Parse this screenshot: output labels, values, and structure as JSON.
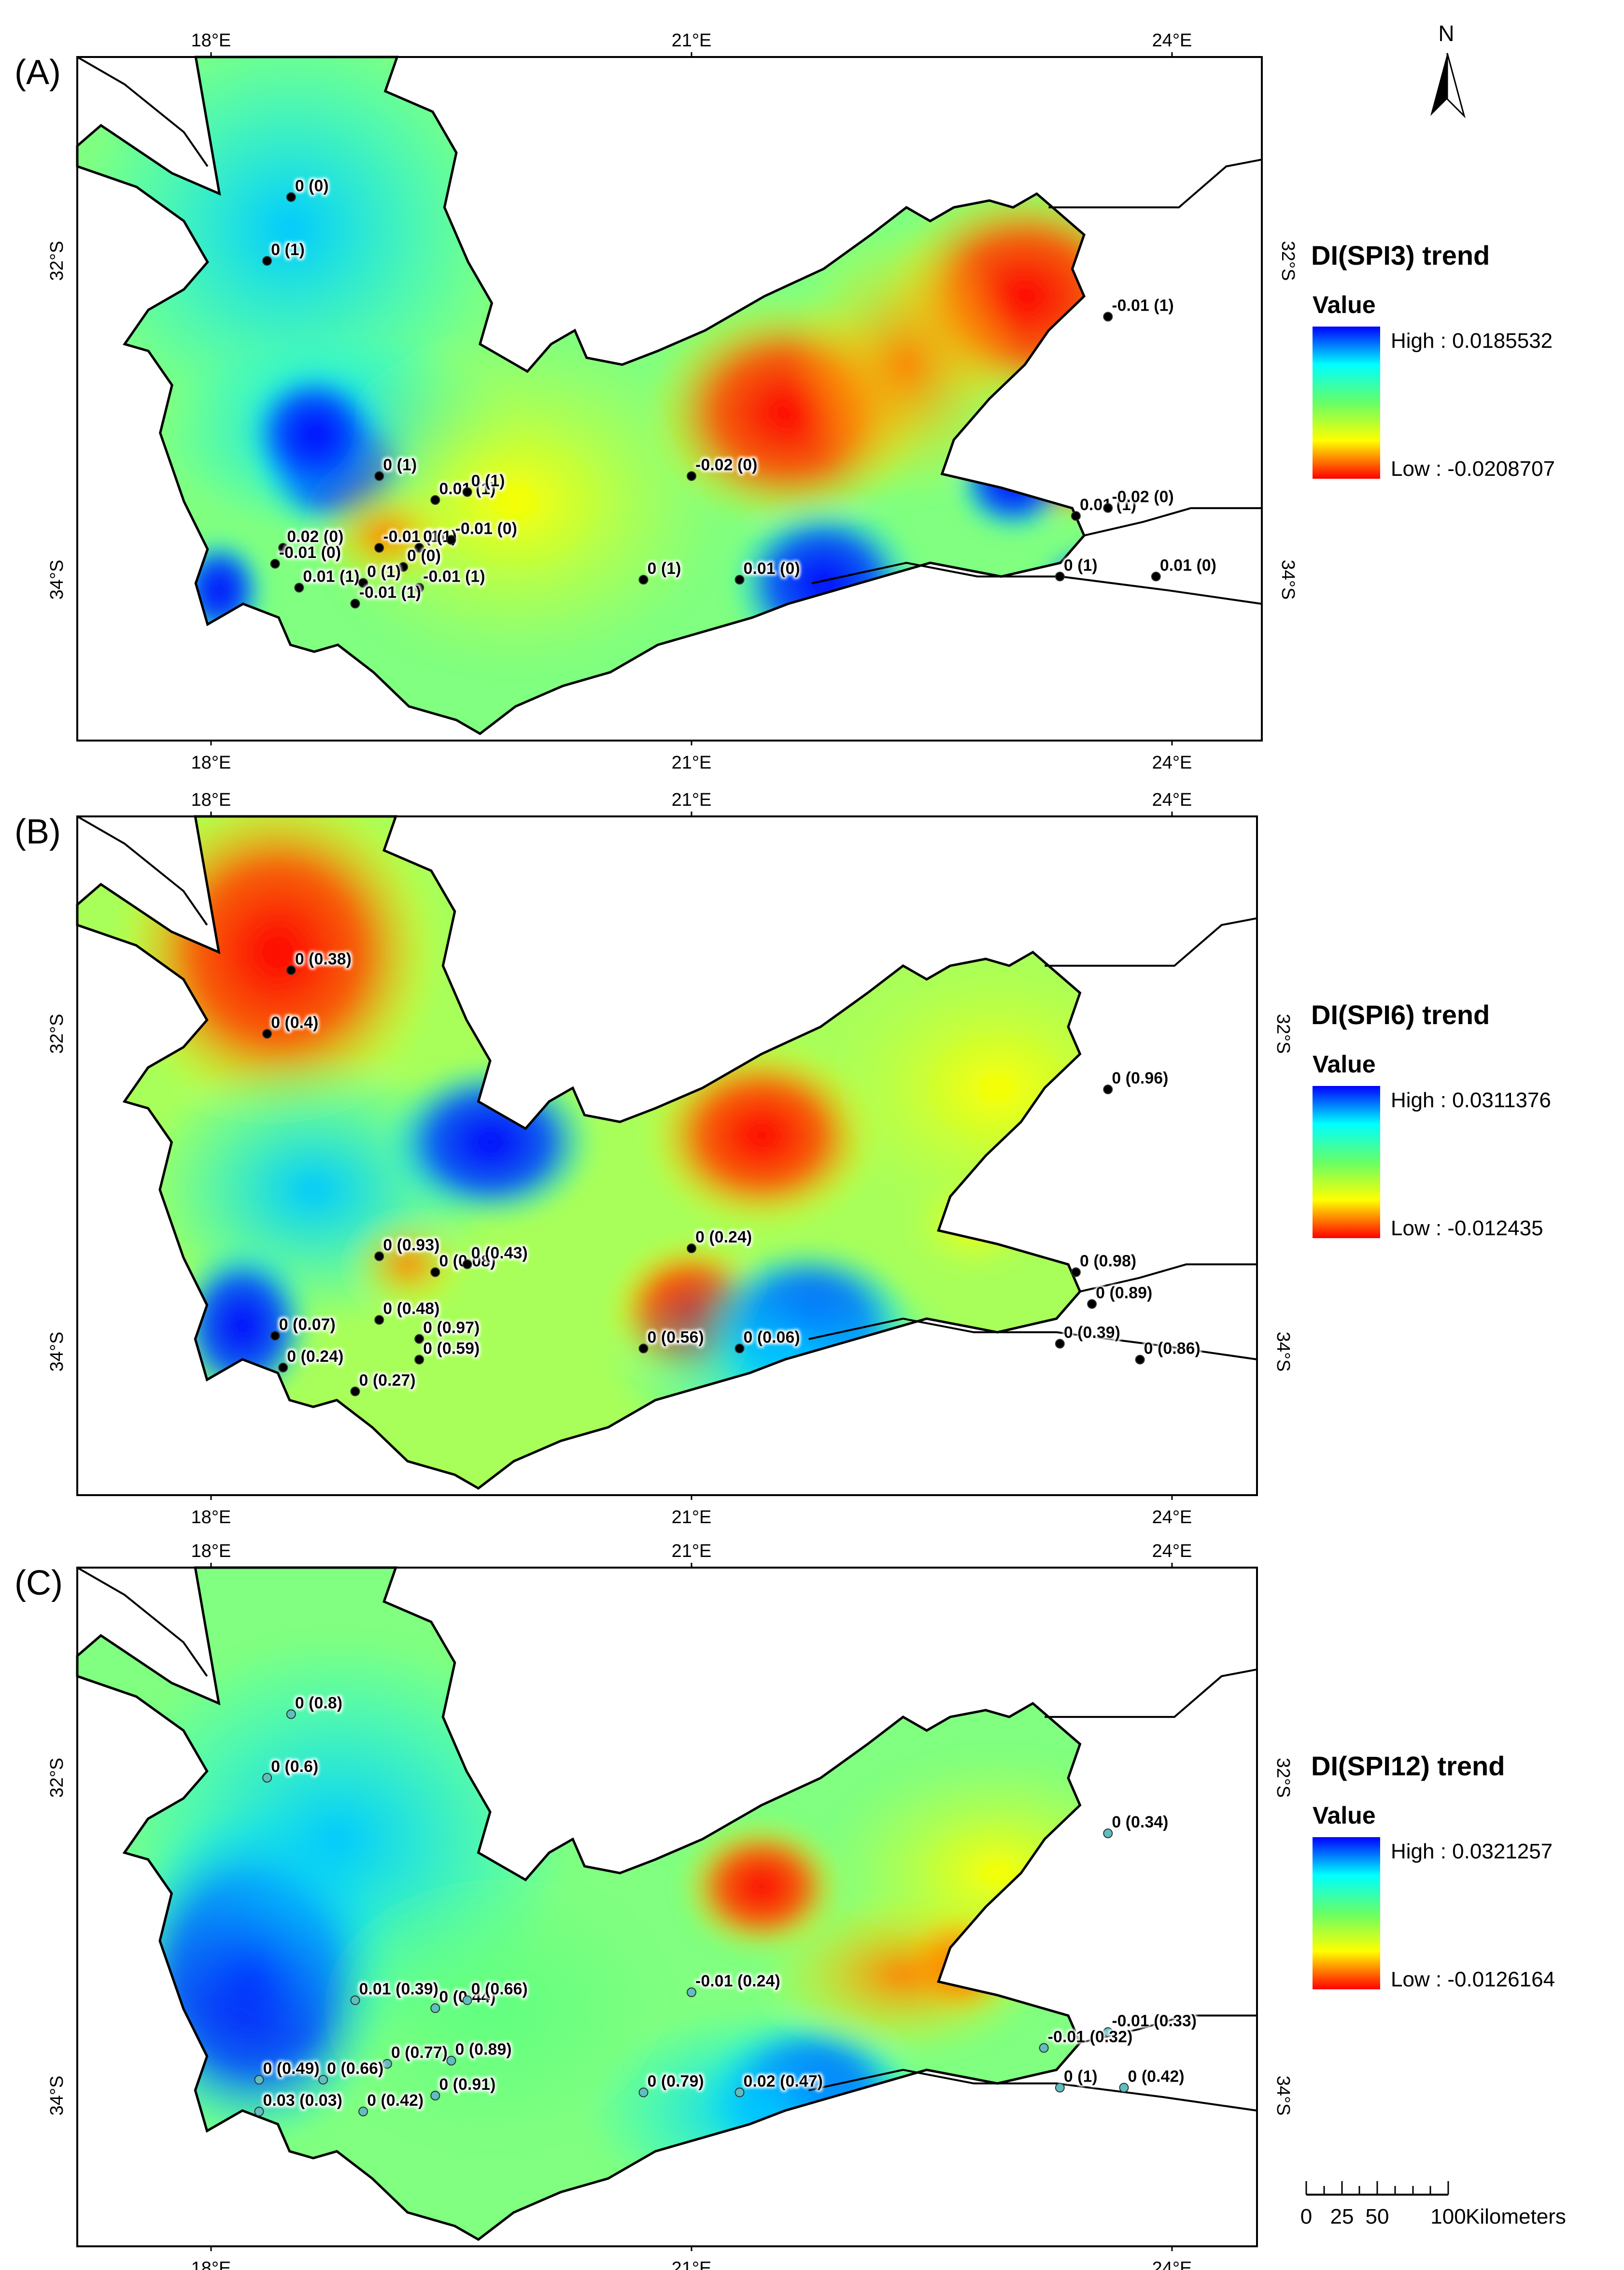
{
  "north_arrow": {
    "label": "N"
  },
  "axis_labels": {
    "x": [
      "18°E",
      "21°E",
      "24°E"
    ],
    "y": [
      "32°S",
      "34°S"
    ]
  },
  "panels": [
    {
      "letter": "(A)",
      "legend": {
        "title": "DI(SPI3) trend",
        "subtitle": "Value",
        "high": "High : 0.0185532",
        "low": "Low : -0.0208707"
      },
      "stations": [
        {
          "label": "0 (0)",
          "lon": 18.5,
          "lat": 31.6,
          "color": "#000000"
        },
        {
          "label": "0 (1)",
          "lon": 18.35,
          "lat": 32.0,
          "color": "#000000"
        },
        {
          "label": "-0.01 (1)",
          "lon": 23.6,
          "lat": 32.35,
          "color": "#000000"
        },
        {
          "label": "-0.02 (0)",
          "lon": 21.0,
          "lat": 33.35,
          "color": "#000000"
        },
        {
          "label": "0 (1)",
          "lon": 19.05,
          "lat": 33.35,
          "color": "#000000"
        },
        {
          "label": "0.01 (1)",
          "lon": 19.4,
          "lat": 33.5,
          "color": "#000000"
        },
        {
          "label": "0 (1)",
          "lon": 19.6,
          "lat": 33.45,
          "color": "#000000"
        },
        {
          "label": "0.01 (1)",
          "lon": 23.4,
          "lat": 33.6,
          "color": "#000000"
        },
        {
          "label": "-0.02 (0)",
          "lon": 23.6,
          "lat": 33.55,
          "color": "#000000"
        },
        {
          "label": "-0.01 (1)",
          "lon": 19.05,
          "lat": 33.8,
          "color": "#000000"
        },
        {
          "label": "0 (1)",
          "lon": 19.3,
          "lat": 33.8,
          "color": "#000000"
        },
        {
          "label": "-0.01 (0)",
          "lon": 19.5,
          "lat": 33.75,
          "color": "#000000"
        },
        {
          "label": "0.02 (0)",
          "lon": 18.45,
          "lat": 33.8,
          "color": "#000000"
        },
        {
          "label": "-0.01 (0)",
          "lon": 18.4,
          "lat": 33.9,
          "color": "#000000"
        },
        {
          "label": "0 (0)",
          "lon": 19.2,
          "lat": 33.92,
          "color": "#000000"
        },
        {
          "label": "0.01 (1)",
          "lon": 18.55,
          "lat": 34.05,
          "color": "#000000"
        },
        {
          "label": "0 (1)",
          "lon": 18.95,
          "lat": 34.02,
          "color": "#000000"
        },
        {
          "label": "-0.01 (1)",
          "lon": 19.3,
          "lat": 34.05,
          "color": "#000000"
        },
        {
          "label": "-0.01 (1)",
          "lon": 18.9,
          "lat": 34.15,
          "color": "#000000"
        },
        {
          "label": "0 (1)",
          "lon": 20.7,
          "lat": 34.0,
          "color": "#000000"
        },
        {
          "label": "0.01 (0)",
          "lon": 21.3,
          "lat": 34.0,
          "color": "#000000"
        },
        {
          "label": "0 (1)",
          "lon": 23.3,
          "lat": 33.98,
          "color": "#000000"
        },
        {
          "label": "0.01 (0)",
          "lon": 23.9,
          "lat": 33.98,
          "color": "#000000"
        }
      ]
    },
    {
      "letter": "(B)",
      "legend": {
        "title": "DI(SPI6) trend",
        "subtitle": "Value",
        "high": "High : 0.0311376",
        "low": "Low : -0.012435"
      },
      "stations": [
        {
          "label": "0 (0.38)",
          "lon": 18.5,
          "lat": 31.6,
          "color": "#000000"
        },
        {
          "label": "0 (0.4)",
          "lon": 18.35,
          "lat": 32.0,
          "color": "#000000"
        },
        {
          "label": "0 (0.96)",
          "lon": 23.6,
          "lat": 32.35,
          "color": "#000000"
        },
        {
          "label": "0 (0.24)",
          "lon": 21.0,
          "lat": 33.35,
          "color": "#000000"
        },
        {
          "label": "0 (0.93)",
          "lon": 19.05,
          "lat": 33.4,
          "color": "#000000"
        },
        {
          "label": "0 (0.08)",
          "lon": 19.4,
          "lat": 33.5,
          "color": "#000000"
        },
        {
          "label": "0 (0.43)",
          "lon": 19.6,
          "lat": 33.45,
          "color": "#000000"
        },
        {
          "label": "0 (0.98)",
          "lon": 23.4,
          "lat": 33.5,
          "color": "#000000"
        },
        {
          "label": "0 (0.89)",
          "lon": 23.5,
          "lat": 33.7,
          "color": "#000000"
        },
        {
          "label": "0 (0.48)",
          "lon": 19.05,
          "lat": 33.8,
          "color": "#000000"
        },
        {
          "label": "0 (0.07)",
          "lon": 18.4,
          "lat": 33.9,
          "color": "#000000"
        },
        {
          "label": "0 (0.97)",
          "lon": 19.3,
          "lat": 33.92,
          "color": "#000000"
        },
        {
          "label": "0 (0.24)",
          "lon": 18.45,
          "lat": 34.1,
          "color": "#000000"
        },
        {
          "label": "0 (0.59)",
          "lon": 19.3,
          "lat": 34.05,
          "color": "#000000"
        },
        {
          "label": "0 (0.27)",
          "lon": 18.9,
          "lat": 34.25,
          "color": "#000000"
        },
        {
          "label": "0 (0.56)",
          "lon": 20.7,
          "lat": 33.98,
          "color": "#000000"
        },
        {
          "label": "0 (0.06)",
          "lon": 21.3,
          "lat": 33.98,
          "color": "#000000"
        },
        {
          "label": "0 (0.39)",
          "lon": 23.3,
          "lat": 33.95,
          "color": "#000000"
        },
        {
          "label": "0 (0.86)",
          "lon": 23.8,
          "lat": 34.05,
          "color": "#000000"
        }
      ]
    },
    {
      "letter": "(C)",
      "legend": {
        "title": "DI(SPI12) trend",
        "subtitle": "Value",
        "high": "High : 0.0321257",
        "low": "Low : -0.0126164"
      },
      "stations": [
        {
          "label": "0 (0.8)",
          "lon": 18.5,
          "lat": 31.6,
          "color": "#5fbfbf"
        },
        {
          "label": "0 (0.6)",
          "lon": 18.35,
          "lat": 32.0,
          "color": "#5fbfbf"
        },
        {
          "label": "0 (0.34)",
          "lon": 23.6,
          "lat": 32.35,
          "color": "#5fbfbf"
        },
        {
          "label": "-0.01 (0.24)",
          "lon": 21.0,
          "lat": 33.35,
          "color": "#5fbfbf"
        },
        {
          "label": "0.01 (0.39)",
          "lon": 18.9,
          "lat": 33.4,
          "color": "#5fbfbf"
        },
        {
          "label": "0 (0.44)",
          "lon": 19.4,
          "lat": 33.45,
          "color": "#5fbfbf"
        },
        {
          "label": "0 (0.66)",
          "lon": 19.6,
          "lat": 33.4,
          "color": "#5fbfbf"
        },
        {
          "label": "-0.01 (0.33)",
          "lon": 23.6,
          "lat": 33.6,
          "color": "#5fbfbf"
        },
        {
          "label": "-0.01 (0.32)",
          "lon": 23.2,
          "lat": 33.7,
          "color": "#5fbfbf"
        },
        {
          "label": "0 (0.77)",
          "lon": 19.1,
          "lat": 33.8,
          "color": "#5fbfbf"
        },
        {
          "label": "0 (0.89)",
          "lon": 19.5,
          "lat": 33.78,
          "color": "#5fbfbf"
        },
        {
          "label": "0 (0.49)",
          "lon": 18.3,
          "lat": 33.9,
          "color": "#5fbfbf"
        },
        {
          "label": "0 (0.66)",
          "lon": 18.7,
          "lat": 33.9,
          "color": "#5fbfbf"
        },
        {
          "label": "0 (0.91)",
          "lon": 19.4,
          "lat": 34.0,
          "color": "#5fbfbf"
        },
        {
          "label": "0 (0.42)",
          "lon": 18.95,
          "lat": 34.1,
          "color": "#5fbfbf"
        },
        {
          "label": "0.03 (0.03)",
          "lon": 18.3,
          "lat": 34.1,
          "color": "#5fbfbf"
        },
        {
          "label": "0 (0.79)",
          "lon": 20.7,
          "lat": 33.98,
          "color": "#5fbfbf"
        },
        {
          "label": "0.02 (0.47)",
          "lon": 21.3,
          "lat": 33.98,
          "color": "#5fbfbf"
        },
        {
          "label": "0 (1)",
          "lon": 23.3,
          "lat": 33.95,
          "color": "#5fbfbf"
        },
        {
          "label": "0 (0.42)",
          "lon": 23.7,
          "lat": 33.95,
          "color": "#5fbfbf"
        }
      ]
    }
  ],
  "colors": {
    "high": "#0000ff",
    "mid_cyan": "#00ffff",
    "mid_green": "#66ff66",
    "mid_yellow": "#ffff00",
    "low": "#ff0000"
  },
  "scale_bar": {
    "ticks": [
      "0",
      "25",
      "50",
      "100"
    ],
    "unit": "Kilometers"
  }
}
